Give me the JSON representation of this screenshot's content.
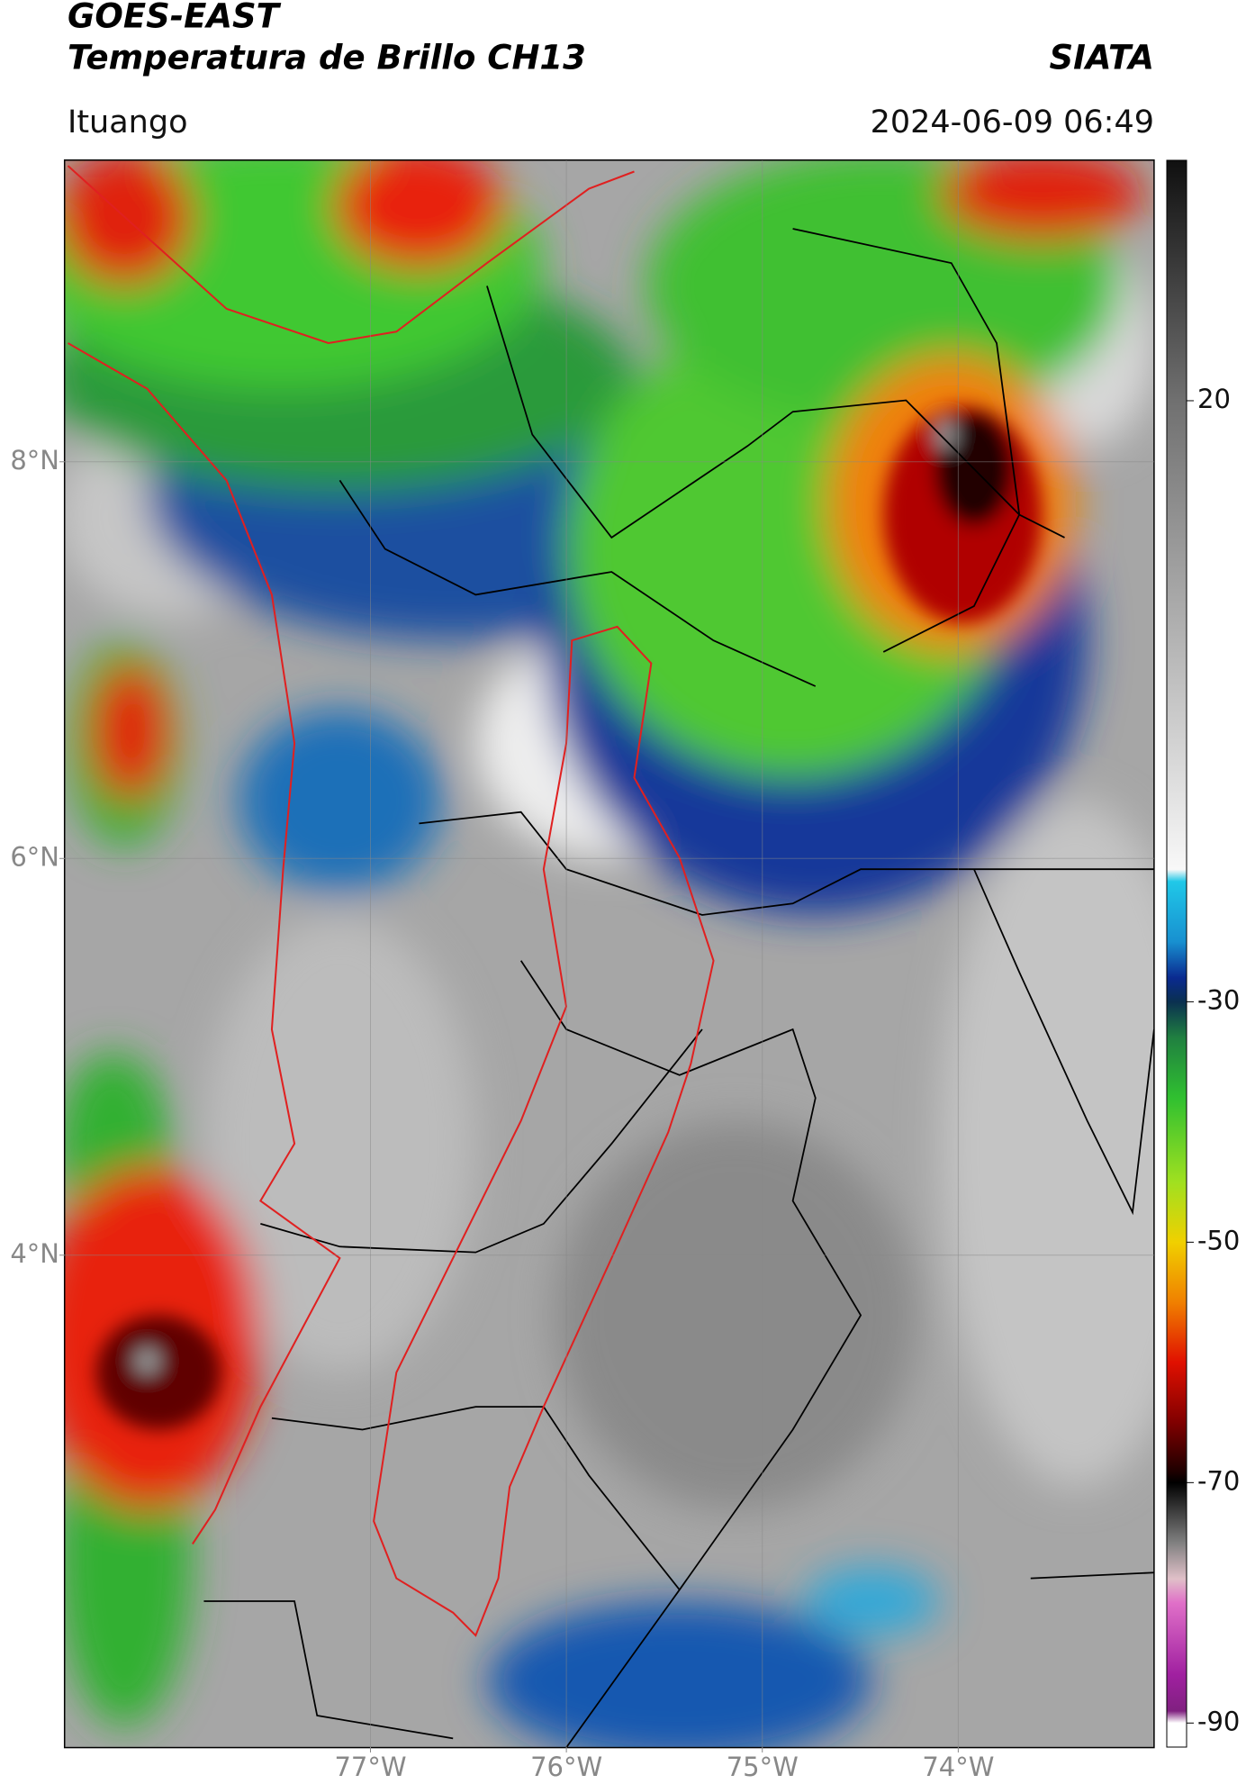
{
  "header": {
    "title_line1": "GOES-EAST",
    "title_line2": "Temperatura de Brillo CH13",
    "agency": "SIATA",
    "location": "Ituango",
    "datetime": "2024-06-09 06:49"
  },
  "map": {
    "lon_range": [
      -78.56,
      -73.0
    ],
    "lat_range": [
      1.52,
      9.52
    ],
    "lon_ticks": [
      {
        "value": -77,
        "label": "77°W"
      },
      {
        "value": -76,
        "label": "76°W"
      },
      {
        "value": -75,
        "label": "75°W"
      },
      {
        "value": -74,
        "label": "74°W"
      }
    ],
    "lat_ticks": [
      {
        "value": 8,
        "label": "8°N"
      },
      {
        "value": 6,
        "label": "6°N"
      },
      {
        "value": 4,
        "label": "4°N"
      }
    ],
    "grid": true
  },
  "colorbar": {
    "range": [
      -92,
      40
    ],
    "ticks": [
      20,
      -30,
      -50,
      -70,
      -90
    ],
    "stops": [
      {
        "value": 40,
        "color": "#101010"
      },
      {
        "value": 30,
        "color": "#404040"
      },
      {
        "value": 20,
        "color": "#707070"
      },
      {
        "value": 0,
        "color": "#b4b4b4"
      },
      {
        "value": -19,
        "color": "#f8f8f8"
      },
      {
        "value": -20,
        "color": "#20c8e8"
      },
      {
        "value": -25,
        "color": "#1890d0"
      },
      {
        "value": -28,
        "color": "#0a2a90"
      },
      {
        "value": -30,
        "color": "#0a3050"
      },
      {
        "value": -33,
        "color": "#208040"
      },
      {
        "value": -38,
        "color": "#30c030"
      },
      {
        "value": -45,
        "color": "#a0e020"
      },
      {
        "value": -50,
        "color": "#f0d000"
      },
      {
        "value": -55,
        "color": "#f08000"
      },
      {
        "value": -60,
        "color": "#e01000"
      },
      {
        "value": -65,
        "color": "#800000"
      },
      {
        "value": -69,
        "color": "#200000"
      },
      {
        "value": -70,
        "color": "#000000"
      },
      {
        "value": -75,
        "color": "#808080"
      },
      {
        "value": -78,
        "color": "#e0c0c8"
      },
      {
        "value": -80,
        "color": "#e070c8"
      },
      {
        "value": -86,
        "color": "#a020a0"
      },
      {
        "value": -89,
        "color": "#802080"
      },
      {
        "value": -90,
        "color": "#ffffff"
      },
      {
        "value": -92,
        "color": "#ffffff"
      }
    ]
  }
}
